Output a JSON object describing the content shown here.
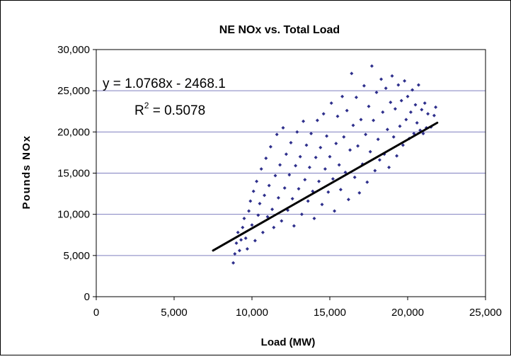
{
  "chart_data": {
    "type": "scatter",
    "title": "NE NOx vs. Total Load",
    "xlabel": "Load (MW)",
    "ylabel": "Pounds NOx",
    "xlim": [
      0,
      25000
    ],
    "ylim": [
      0,
      30000
    ],
    "x_ticks": [
      0,
      5000,
      10000,
      15000,
      20000,
      25000
    ],
    "y_ticks": [
      0,
      5000,
      10000,
      15000,
      20000,
      25000,
      30000
    ],
    "x_tick_labels": [
      "0",
      "5,000",
      "10,000",
      "15,000",
      "20,000",
      "25,000"
    ],
    "y_tick_labels": [
      "0",
      "5,000",
      "10,000",
      "15,000",
      "20,000",
      "25,000",
      "30,000"
    ],
    "grid": "horizontal",
    "legend": "none",
    "marker": "diamond",
    "series": [
      {
        "points": [
          [
            8800,
            4100
          ],
          [
            8900,
            5200
          ],
          [
            9000,
            6500
          ],
          [
            9100,
            7800
          ],
          [
            9200,
            5600
          ],
          [
            9300,
            6900
          ],
          [
            9400,
            8400
          ],
          [
            9500,
            9500
          ],
          [
            9600,
            7100
          ],
          [
            9700,
            5800
          ],
          [
            9800,
            10400
          ],
          [
            9900,
            11600
          ],
          [
            10000,
            8700
          ],
          [
            10100,
            12800
          ],
          [
            10200,
            6800
          ],
          [
            10300,
            14000
          ],
          [
            10400,
            9900
          ],
          [
            10500,
            11300
          ],
          [
            10600,
            15500
          ],
          [
            10700,
            7800
          ],
          [
            10800,
            12300
          ],
          [
            10900,
            16800
          ],
          [
            11000,
            9700
          ],
          [
            11100,
            13500
          ],
          [
            11200,
            18200
          ],
          [
            11300,
            10600
          ],
          [
            11400,
            8400
          ],
          [
            11500,
            14700
          ],
          [
            11600,
            19700
          ],
          [
            11700,
            12000
          ],
          [
            11800,
            16000
          ],
          [
            11900,
            9200
          ],
          [
            12000,
            20500
          ],
          [
            12100,
            13200
          ],
          [
            12200,
            17300
          ],
          [
            12300,
            10500
          ],
          [
            12400,
            14800
          ],
          [
            12500,
            18700
          ],
          [
            12600,
            11900
          ],
          [
            12700,
            8600
          ],
          [
            12800,
            15900
          ],
          [
            12900,
            20000
          ],
          [
            13000,
            13100
          ],
          [
            13100,
            17000
          ],
          [
            13200,
            10000
          ],
          [
            13300,
            21300
          ],
          [
            13400,
            14200
          ],
          [
            13500,
            18400
          ],
          [
            13600,
            11600
          ],
          [
            13700,
            15700
          ],
          [
            13800,
            19800
          ],
          [
            13900,
            12800
          ],
          [
            14000,
            9500
          ],
          [
            14100,
            16900
          ],
          [
            14200,
            21400
          ],
          [
            14300,
            14000
          ],
          [
            14400,
            18100
          ],
          [
            14500,
            11200
          ],
          [
            14600,
            22200
          ],
          [
            14700,
            15500
          ],
          [
            14800,
            19500
          ],
          [
            14900,
            12700
          ],
          [
            15000,
            17000
          ],
          [
            15100,
            23500
          ],
          [
            15200,
            14300
          ],
          [
            15300,
            10400
          ],
          [
            15400,
            18600
          ],
          [
            15500,
            21900
          ],
          [
            15600,
            16000
          ],
          [
            15700,
            13000
          ],
          [
            15800,
            24300
          ],
          [
            15900,
            19400
          ],
          [
            16000,
            15100
          ],
          [
            16100,
            22600
          ],
          [
            16200,
            11800
          ],
          [
            16300,
            17800
          ],
          [
            16400,
            27100
          ],
          [
            16500,
            20800
          ],
          [
            16600,
            14500
          ],
          [
            16700,
            24200
          ],
          [
            16800,
            18300
          ],
          [
            16900,
            12600
          ],
          [
            17000,
            21500
          ],
          [
            17100,
            16100
          ],
          [
            17200,
            25600
          ],
          [
            17300,
            19700
          ],
          [
            17400,
            13900
          ],
          [
            17500,
            23100
          ],
          [
            17600,
            17600
          ],
          [
            17700,
            28000
          ],
          [
            17800,
            21400
          ],
          [
            17900,
            15300
          ],
          [
            18000,
            24800
          ],
          [
            18100,
            19100
          ],
          [
            18200,
            16600
          ],
          [
            18300,
            26400
          ],
          [
            18400,
            22400
          ],
          [
            18500,
            17300
          ],
          [
            18600,
            25300
          ],
          [
            18700,
            20300
          ],
          [
            18800,
            15700
          ],
          [
            18900,
            23600
          ],
          [
            19000,
            26800
          ],
          [
            19100,
            19400
          ],
          [
            19200,
            22800
          ],
          [
            19300,
            17100
          ],
          [
            19400,
            25700
          ],
          [
            19500,
            20700
          ],
          [
            19600,
            23800
          ],
          [
            19700,
            18400
          ],
          [
            19800,
            26200
          ],
          [
            19900,
            21500
          ],
          [
            20000,
            24300
          ],
          [
            20100,
            19200
          ],
          [
            20200,
            22400
          ],
          [
            20300,
            25100
          ],
          [
            20400,
            19800
          ],
          [
            20500,
            23300
          ],
          [
            20600,
            21100
          ],
          [
            20700,
            25700
          ],
          [
            20800,
            20200
          ],
          [
            20900,
            22700
          ],
          [
            21000,
            19800
          ],
          [
            21100,
            23500
          ],
          [
            21200,
            20500
          ],
          [
            21300,
            22200
          ],
          [
            21500,
            20600
          ],
          [
            21700,
            22000
          ],
          [
            21800,
            23000
          ]
        ]
      }
    ],
    "trendline": {
      "x_range": [
        7500,
        21900
      ],
      "slope": 1.0768,
      "intercept": -2468.1
    },
    "annotations": {
      "equation_prefix": "y = 1.0768x - 2468.1",
      "r2_base": "R",
      "r2_sup": "2",
      "r2_value": " = 0.5078"
    },
    "colors": {
      "points": "#2e2f8c",
      "trendline": "#000000",
      "grid": "#7f7fbf",
      "frame": "#000000"
    }
  }
}
